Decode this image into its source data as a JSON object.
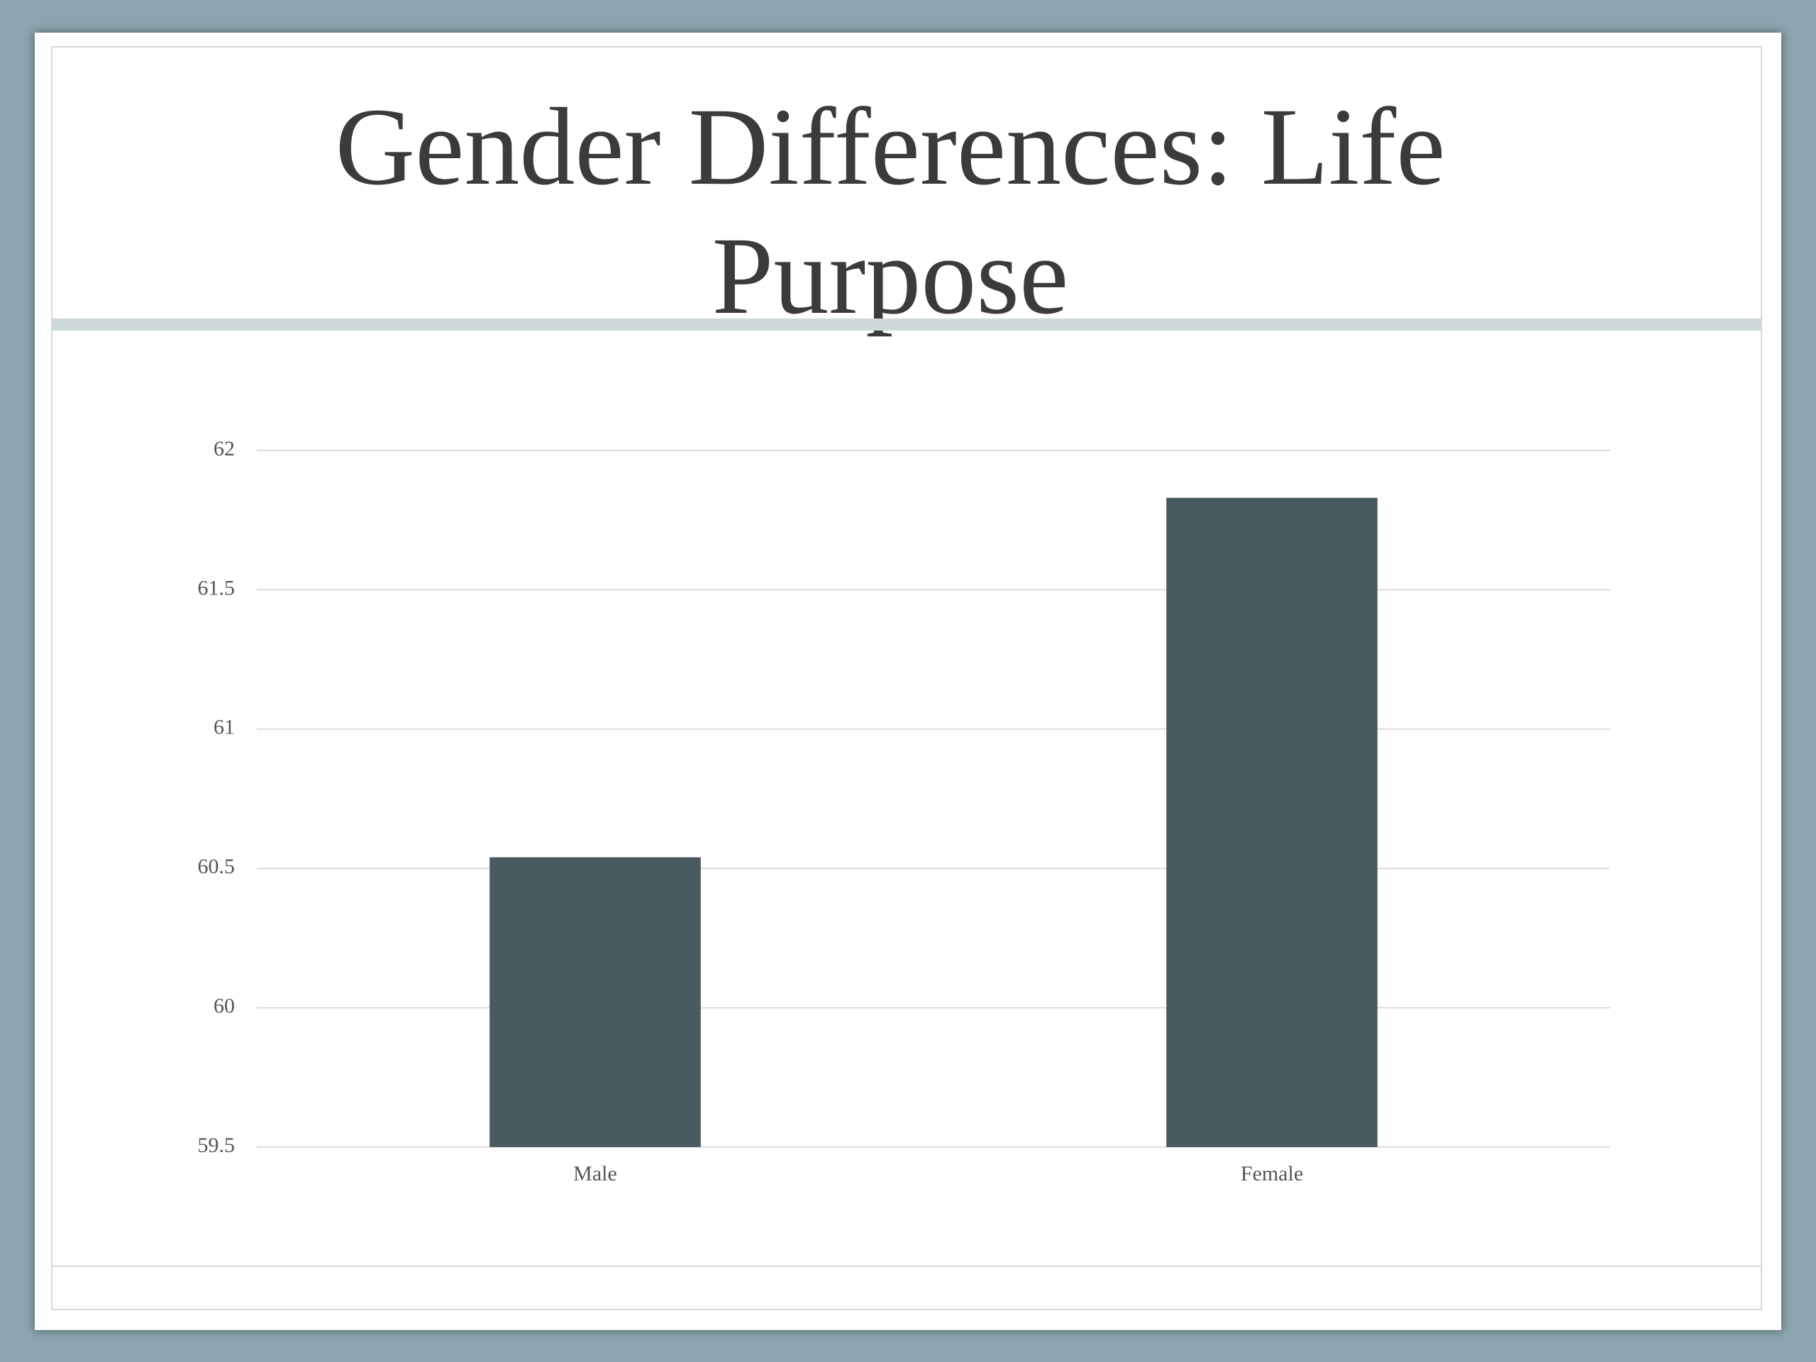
{
  "chart_data": {
    "type": "bar",
    "title": "Gender Differences: Life Purpose",
    "categories": [
      "Male",
      "Female"
    ],
    "values": [
      60.54,
      61.83
    ],
    "color": "#4a5a61",
    "ylim": [
      59.5,
      62
    ],
    "yticks": [
      59.5,
      60,
      60.5,
      61,
      61.5,
      62
    ],
    "grid": true
  }
}
